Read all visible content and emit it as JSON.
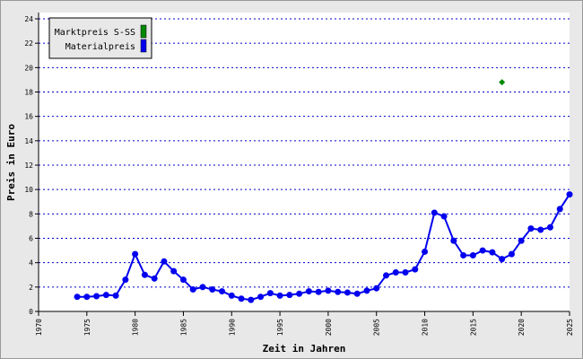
{
  "chart_data": {
    "type": "line",
    "x_label": "Zeit in Jahren",
    "y_label": "Preis in Euro",
    "xlim": [
      1970,
      2025
    ],
    "xticks": [
      1970,
      1975,
      1980,
      1985,
      1990,
      1995,
      2000,
      2005,
      2010,
      2015,
      2020,
      2025
    ],
    "ylim": [
      0,
      24
    ],
    "yticks": [
      0,
      2,
      4,
      6,
      8,
      10,
      12,
      14,
      16,
      18,
      20,
      22,
      24
    ],
    "grid": true,
    "legend": "upper left",
    "series": [
      {
        "name": "Marktpreis S-SS",
        "color": "#008800",
        "marker": "diamond",
        "line": false,
        "x": [
          2018
        ],
        "values": [
          18.8
        ]
      },
      {
        "name": "Materialpreis",
        "color": "#0000ee",
        "marker": "circle",
        "line": true,
        "x": [
          1974,
          1975,
          1976,
          1977,
          1978,
          1979,
          1980,
          1981,
          1982,
          1983,
          1984,
          1985,
          1986,
          1987,
          1988,
          1989,
          1990,
          1991,
          1992,
          1993,
          1994,
          1995,
          1996,
          1997,
          1998,
          1999,
          2000,
          2001,
          2002,
          2003,
          2004,
          2005,
          2006,
          2007,
          2008,
          2009,
          2010,
          2011,
          2012,
          2013,
          2014,
          2015,
          2016,
          2017,
          2018,
          2019,
          2020,
          2021,
          2022,
          2023,
          2024,
          2025
        ],
        "values": [
          1.2,
          1.2,
          1.25,
          1.35,
          1.3,
          2.6,
          4.7,
          3.0,
          2.7,
          4.1,
          3.3,
          2.6,
          1.8,
          2.0,
          1.8,
          1.65,
          1.3,
          1.05,
          0.95,
          1.2,
          1.5,
          1.3,
          1.35,
          1.45,
          1.65,
          1.6,
          1.7,
          1.6,
          1.55,
          1.45,
          1.7,
          1.9,
          2.95,
          3.2,
          3.2,
          3.45,
          4.9,
          8.1,
          7.8,
          5.8,
          4.6,
          4.6,
          5.0,
          4.85,
          4.3,
          4.7,
          5.8,
          6.8,
          6.7,
          6.9,
          8.4,
          9.6
        ]
      }
    ]
  }
}
